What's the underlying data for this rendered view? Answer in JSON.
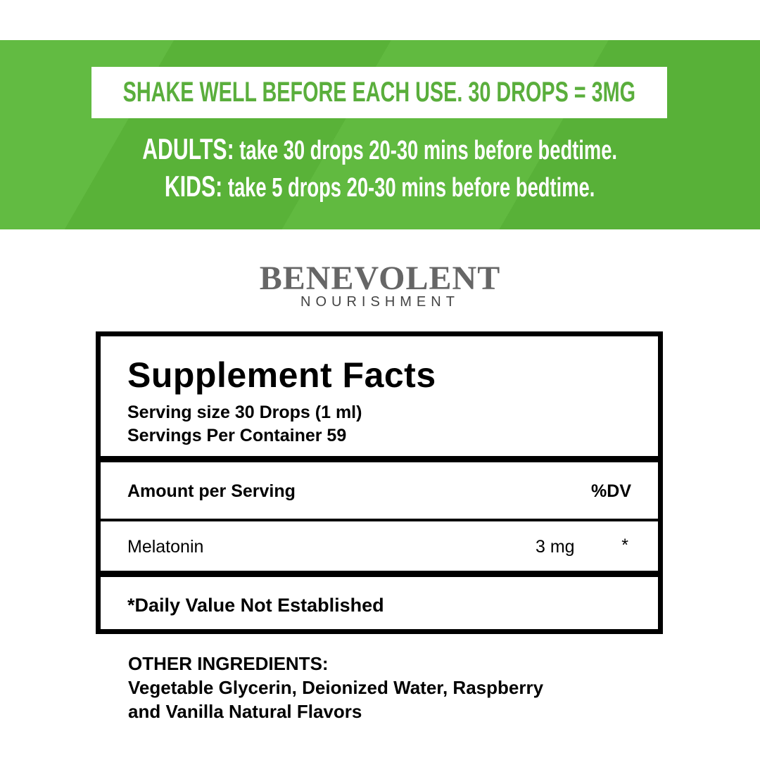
{
  "banner": {
    "shake_notice": "SHAKE WELL BEFORE EACH USE. 30 DROPS = 3MG",
    "adults_label": "ADULTS:",
    "adults_text": "take 30 drops 20-30 mins before bedtime.",
    "kids_label": "KIDS:",
    "kids_text": "take 5 drops 20-30 mins before bedtime.",
    "colors": {
      "green": "#5cb83a",
      "text_green": "#5aae3c"
    }
  },
  "logo": {
    "brand": "BENEVOLENT",
    "sub": "NOURISHMENT"
  },
  "facts": {
    "title": "Supplement Facts",
    "serving_size": "Serving size 30 Drops (1 ml)",
    "servings_per_container": "Servings Per Container 59",
    "amount_header": "Amount per Serving",
    "dv_header": "%DV",
    "rows": [
      {
        "name": "Melatonin",
        "amount": "3 mg",
        "dv": "*"
      }
    ],
    "footnote": "*Daily Value Not Established"
  },
  "other_ingredients": {
    "label": "OTHER INGREDIENTS:",
    "line1": "Vegetable Glycerin, Deionized Water, Raspberry",
    "line2": "and Vanilla Natural Flavors"
  }
}
